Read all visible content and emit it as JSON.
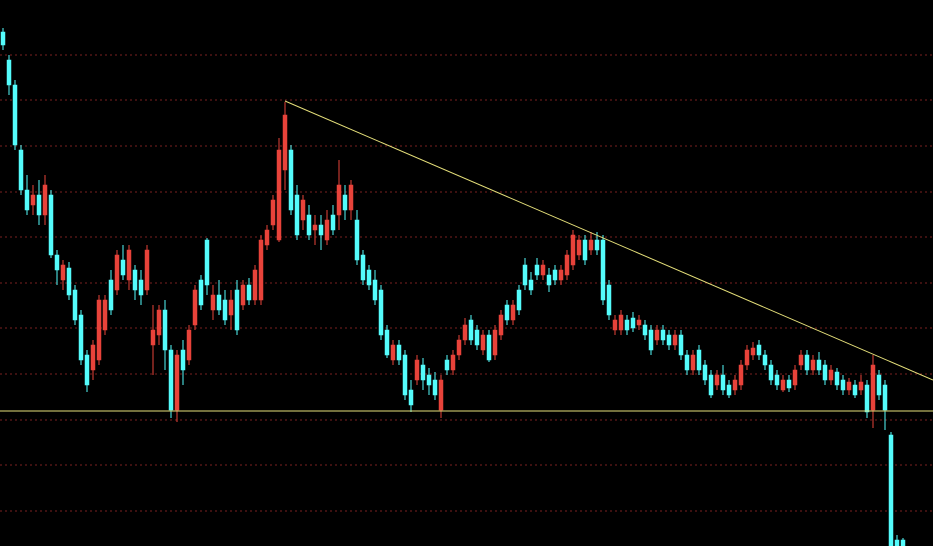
{
  "chart_data": {
    "type": "candlestick",
    "up_color": "#e8433a",
    "down_color": "#54fcfc",
    "grid_color": "#7a1f1f",
    "grid": true,
    "xlim": [
      -0.5,
      155
    ],
    "ylim": [
      0,
      546
    ],
    "yticks": [
      35,
      81,
      126,
      172,
      218,
      263,
      309,
      354,
      400,
      446,
      491
    ],
    "open": [
      514,
      486,
      461,
      396,
      356,
      341,
      351,
      331,
      351,
      291,
      266,
      278,
      256,
      231,
      191,
      176,
      186,
      216,
      266,
      256,
      286,
      266,
      276,
      266,
      256,
      201,
      211,
      236,
      196,
      136,
      196,
      186,
      221,
      266,
      306,
      236,
      251,
      246,
      231,
      256,
      241,
      261,
      246,
      246,
      301,
      321,
      306,
      376,
      396,
      351,
      326,
      331,
      316,
      321,
      306,
      331,
      331,
      351,
      336,
      326,
      291,
      276,
      266,
      256,
      216,
      186,
      201,
      191,
      156,
      166,
      181,
      171,
      166,
      136,
      186,
      176,
      191,
      206,
      226,
      216,
      196,
      211,
      191,
      211,
      241,
      226,
      256,
      281,
      266,
      281,
      271,
      271,
      276,
      266,
      271,
      281,
      291,
      306,
      296,
      306,
      306,
      261,
      216,
      216,
      226,
      228,
      221,
      221,
      216,
      206,
      216,
      211,
      201,
      211,
      191,
      176,
      196,
      181,
      171,
      161,
      171,
      161,
      156,
      161,
      181,
      191,
      201,
      191,
      181,
      171,
      156,
      166,
      161,
      181,
      191,
      176,
      186,
      181,
      166,
      174,
      166,
      156,
      161,
      156,
      161,
      136,
      171,
      161,
      111,
      6,
      6
    ],
    "high": [
      518,
      491,
      466,
      401,
      371,
      361,
      366,
      371,
      356,
      296,
      286,
      284,
      261,
      236,
      196,
      206,
      251,
      251,
      276,
      296,
      301,
      301,
      281,
      276,
      301,
      241,
      241,
      246,
      201,
      196,
      206,
      221,
      261,
      271,
      308,
      261,
      266,
      256,
      256,
      266,
      266,
      268,
      281,
      311,
      321,
      351,
      408,
      444,
      401,
      361,
      351,
      341,
      331,
      331,
      336,
      341,
      386,
      361,
      366,
      336,
      296,
      281,
      276,
      261,
      221,
      206,
      206,
      196,
      166,
      191,
      188,
      178,
      174,
      171,
      191,
      196,
      211,
      228,
      231,
      221,
      216,
      216,
      221,
      236,
      246,
      246,
      261,
      288,
      274,
      288,
      286,
      278,
      281,
      281,
      296,
      316,
      311,
      311,
      314,
      314,
      311,
      266,
      231,
      236,
      231,
      234,
      231,
      226,
      221,
      221,
      221,
      216,
      216,
      216,
      196,
      196,
      201,
      186,
      176,
      176,
      181,
      166,
      171,
      186,
      201,
      204,
      206,
      196,
      186,
      176,
      171,
      171,
      181,
      196,
      196,
      191,
      194,
      186,
      181,
      178,
      171,
      168,
      166,
      171,
      166,
      191,
      176,
      166,
      114,
      11,
      8
    ],
    "low": [
      496,
      451,
      396,
      351,
      331,
      331,
      321,
      321,
      288,
      261,
      256,
      246,
      221,
      181,
      154,
      166,
      181,
      211,
      231,
      251,
      266,
      256,
      246,
      241,
      251,
      171,
      201,
      176,
      128,
      124,
      161,
      181,
      216,
      236,
      251,
      226,
      231,
      221,
      216,
      211,
      236,
      241,
      241,
      241,
      296,
      316,
      304,
      356,
      331,
      306,
      316,
      306,
      301,
      296,
      301,
      311,
      316,
      326,
      326,
      281,
      261,
      256,
      241,
      206,
      188,
      181,
      181,
      146,
      134,
      161,
      156,
      151,
      146,
      128,
      171,
      171,
      186,
      201,
      201,
      196,
      191,
      184,
      186,
      206,
      221,
      221,
      231,
      256,
      251,
      266,
      266,
      254,
      261,
      261,
      266,
      276,
      286,
      281,
      291,
      291,
      241,
      226,
      211,
      211,
      211,
      214,
      216,
      206,
      191,
      201,
      201,
      196,
      196,
      186,
      171,
      171,
      171,
      161,
      148,
      156,
      151,
      148,
      151,
      156,
      176,
      186,
      186,
      176,
      161,
      156,
      154,
      154,
      156,
      176,
      171,
      171,
      171,
      161,
      161,
      156,
      151,
      151,
      148,
      151,
      128,
      118,
      146,
      116,
      0,
      0,
      0
    ],
    "close": [
      501,
      461,
      401,
      356,
      336,
      351,
      331,
      361,
      291,
      276,
      281,
      251,
      226,
      186,
      161,
      201,
      246,
      246,
      236,
      291,
      271,
      296,
      256,
      251,
      296,
      216,
      236,
      196,
      136,
      191,
      176,
      216,
      256,
      241,
      261,
      251,
      236,
      226,
      246,
      216,
      261,
      246,
      276,
      306,
      316,
      346,
      396,
      431,
      336,
      311,
      346,
      311,
      321,
      311,
      326,
      316,
      361,
      336,
      361,
      286,
      266,
      261,
      246,
      211,
      191,
      201,
      186,
      151,
      141,
      186,
      166,
      161,
      151,
      166,
      176,
      191,
      206,
      221,
      206,
      201,
      211,
      186,
      216,
      231,
      226,
      241,
      236,
      261,
      256,
      271,
      281,
      261,
      266,
      276,
      291,
      311,
      306,
      286,
      306,
      296,
      246,
      231,
      226,
      231,
      216,
      218,
      226,
      211,
      196,
      216,
      206,
      201,
      211,
      191,
      176,
      191,
      176,
      166,
      151,
      171,
      156,
      151,
      166,
      181,
      196,
      198,
      191,
      181,
      166,
      161,
      166,
      158,
      176,
      191,
      176,
      186,
      176,
      166,
      176,
      161,
      156,
      164,
      151,
      164,
      134,
      181,
      151,
      136,
      0,
      0,
      0
    ],
    "lines": [
      {
        "color": "#e6e07a",
        "x": [
          47,
          155
        ],
        "y": [
          445,
          166
        ]
      },
      {
        "color": "#e6e07a",
        "x": [
          -0.5,
          155
        ],
        "y": [
          135,
          135
        ]
      }
    ]
  }
}
